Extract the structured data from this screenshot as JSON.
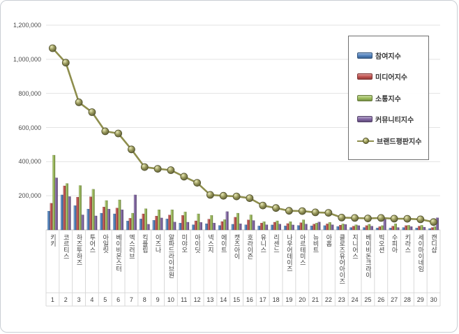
{
  "window": {
    "background": "#ffffff",
    "border_color": "#c9ced4"
  },
  "chart_data": {
    "type": "bar",
    "subtype": "clustered-bars-with-line-overlay",
    "title": "",
    "xlabel": "",
    "ylabel": "",
    "ylim": [
      0,
      1200000
    ],
    "ytick_step": 200000,
    "yticks": [
      {
        "value": 200000,
        "label": "200,000"
      },
      {
        "value": 400000,
        "label": "400,000"
      },
      {
        "value": 600000,
        "label": "600,000"
      },
      {
        "value": 800000,
        "label": "800,000"
      },
      {
        "value": 1000000,
        "label": "1,000,000"
      },
      {
        "value": 1200000,
        "label": "1,200,000"
      }
    ],
    "grid": true,
    "legend_position": "upper-right",
    "categories": [
      "키키",
      "코르티스",
      "하즈투하즈",
      "투어스",
      "아일릿",
      "베이비몬스터",
      "엑스러브",
      "킥플립",
      "이즈나",
      "알파드라이브원",
      "미야오",
      "아이딧",
      "넥스지",
      "에이트",
      "캣츠아이",
      "호라이즌",
      "유니스",
      "리센느",
      "나우어데이즈",
      "아르테미스",
      "뉴비트",
      "아홉",
      "클로즈유어아이즈",
      "지니어스",
      "베이비돈크라이",
      "빅오션",
      "수피아",
      "키라스",
      "세이마이네임",
      "캔디샵"
    ],
    "rank_labels": [
      "1",
      "2",
      "3",
      "4",
      "5",
      "6",
      "7",
      "8",
      "9",
      "10",
      "11",
      "12",
      "13",
      "14",
      "15",
      "16",
      "17",
      "18",
      "19",
      "20",
      "21",
      "22",
      "23",
      "24",
      "25",
      "26",
      "27",
      "28",
      "29",
      "30"
    ],
    "series": [
      {
        "key": "participation",
        "name": "참여지수",
        "type": "bar",
        "color": "#4F81BD",
        "values": [
          110000,
          205000,
          142000,
          122000,
          98000,
          94000,
          52000,
          64000,
          56000,
          64000,
          40000,
          30000,
          36000,
          26000,
          33000,
          30000,
          23000,
          29000,
          23000,
          26000,
          24000,
          25000,
          20000,
          14000,
          14000,
          11000,
          11000,
          14000,
          11000,
          8000
        ]
      },
      {
        "key": "media",
        "name": "미디어지수",
        "type": "bar",
        "color": "#C0504D",
        "values": [
          156000,
          258000,
          192000,
          194000,
          134000,
          128000,
          68000,
          94000,
          81000,
          87000,
          85000,
          53000,
          63000,
          49000,
          74000,
          58000,
          40000,
          45000,
          37000,
          42000,
          34000,
          35000,
          28000,
          22000,
          25000,
          19000,
          22000,
          25000,
          22000,
          14000
        ]
      },
      {
        "key": "communication",
        "name": "소통지수",
        "type": "bar",
        "color": "#9BBB59",
        "values": [
          438000,
          272000,
          260000,
          238000,
          172000,
          176000,
          98000,
          124000,
          118000,
          118000,
          105000,
          94000,
          85000,
          60000,
          98000,
          88000,
          48000,
          53000,
          48000,
          59000,
          40000,
          44000,
          35000,
          30000,
          33000,
          25000,
          36000,
          27000,
          27000,
          19000
        ]
      },
      {
        "key": "community",
        "name": "커뮤니티지수",
        "type": "bar",
        "color": "#8064A2",
        "values": [
          305000,
          195000,
          88000,
          82000,
          122000,
          118000,
          205000,
          33000,
          70000,
          46000,
          45000,
          44000,
          40000,
          107000,
          36000,
          55000,
          30000,
          34000,
          29000,
          34000,
          46000,
          30000,
          32000,
          25000,
          22000,
          66000,
          14000,
          19000,
          16000,
          71000
        ]
      },
      {
        "key": "brand",
        "name": "브랜드평판지수",
        "type": "line",
        "color": "#8E8E4D",
        "values": [
          1065000,
          980000,
          748000,
          690000,
          578000,
          565000,
          472000,
          368000,
          358000,
          350000,
          312000,
          276000,
          205000,
          200000,
          196000,
          186000,
          143000,
          128000,
          112000,
          110000,
          103000,
          100000,
          72000,
          70000,
          67000,
          70000,
          66000,
          65000,
          62000,
          46000
        ]
      }
    ]
  }
}
